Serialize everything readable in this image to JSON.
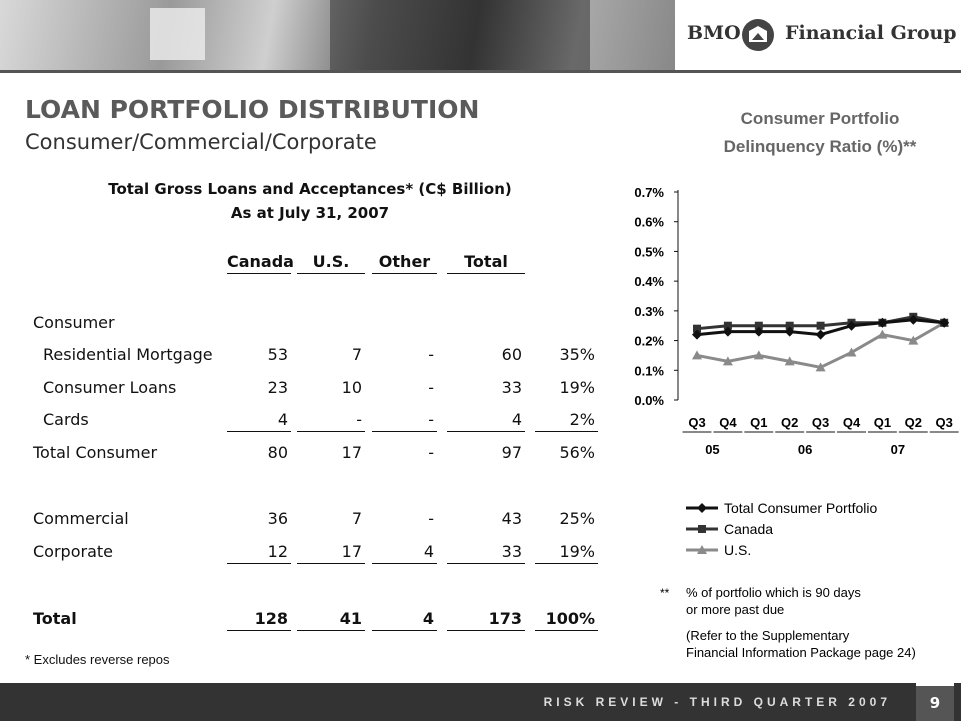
{
  "header": {
    "brand": "BMO",
    "brand_suffix": "Financial Group"
  },
  "title": "LOAN PORTFOLIO DISTRIBUTION",
  "subtitle": "Consumer/Commercial/Corporate",
  "table": {
    "caption": [
      "Total Gross Loans and Acceptances* (C$ Billion)",
      "As at July 31, 2007"
    ],
    "columns": [
      "Canada",
      "U.S.",
      "Other",
      "Total"
    ],
    "rows": [
      {
        "label": "Consumer",
        "cells": []
      },
      {
        "label": "Residential Mortgage",
        "cells": [
          "53",
          "7",
          "-",
          "60",
          "35%"
        ]
      },
      {
        "label": "Consumer Loans",
        "cells": [
          "23",
          "10",
          "-",
          "33",
          "19%"
        ]
      },
      {
        "label": "Cards",
        "cells": [
          "4",
          "-",
          "-",
          "4",
          "2%"
        ]
      },
      {
        "label": "Total Consumer",
        "cells": [
          "80",
          "17",
          "-",
          "97",
          "56%"
        ]
      },
      {
        "label": "Commercial",
        "cells": [
          "36",
          "7",
          "-",
          "43",
          "25%"
        ]
      },
      {
        "label": "Corporate",
        "cells": [
          "12",
          "17",
          "4",
          "33",
          "19%"
        ]
      },
      {
        "label": "Total",
        "cells": [
          "128",
          "41",
          "4",
          "173",
          "100%"
        ]
      }
    ],
    "footnote": "* Excludes reverse repos"
  },
  "chart_data": {
    "type": "line",
    "title": [
      "Consumer Portfolio",
      "Delinquency Ratio (%)**"
    ],
    "categories": [
      "Q3",
      "Q4",
      "Q1",
      "Q2",
      "Q3",
      "Q4",
      "Q1",
      "Q2",
      "Q3"
    ],
    "x_group_labels": [
      "05",
      null,
      null,
      "06",
      null,
      null,
      "07",
      null,
      null
    ],
    "ylim": [
      0,
      0.7
    ],
    "yticks": [
      {
        "value": 0,
        "label": "0.0%"
      },
      {
        "value": 0.1,
        "label": "0.1%"
      },
      {
        "value": 0.2,
        "label": "0.2%"
      },
      {
        "value": 0.3,
        "label": "0.3%"
      },
      {
        "value": 0.4,
        "label": "0.4%"
      },
      {
        "value": 0.5,
        "label": "0.5%"
      },
      {
        "value": 0.6,
        "label": "0.6%"
      },
      {
        "value": 0.7,
        "label": "0.7%"
      }
    ],
    "series": [
      {
        "name": "Total Consumer Portfolio",
        "color": "#111111",
        "marker": "diamond",
        "values": [
          0.22,
          0.23,
          0.23,
          0.23,
          0.22,
          0.25,
          0.26,
          0.27,
          0.26
        ]
      },
      {
        "name": "Canada",
        "color": "#333333",
        "marker": "square",
        "values": [
          0.24,
          0.25,
          0.25,
          0.25,
          0.25,
          0.26,
          0.26,
          0.28,
          0.26
        ]
      },
      {
        "name": "U.S.",
        "color": "#8a8a8a",
        "marker": "triangle",
        "values": [
          0.15,
          0.13,
          0.15,
          0.13,
          0.11,
          0.16,
          0.22,
          0.2,
          0.26
        ]
      }
    ],
    "notes": [
      {
        "mark": "**",
        "lines": [
          "% of portfolio which is 90 days",
          "or more past due"
        ]
      },
      {
        "lines": [
          "(Refer to the Supplementary",
          "Financial Information Package page 24)"
        ]
      }
    ]
  },
  "footer": {
    "text": "RISK REVIEW - THIRD QUARTER 2007",
    "page": "9"
  }
}
